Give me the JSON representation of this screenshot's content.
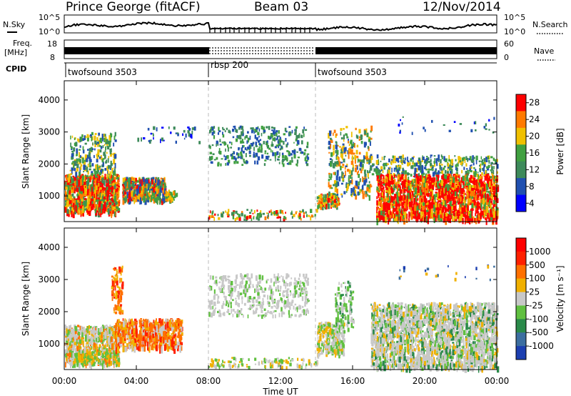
{
  "header": {
    "station": "Prince George (fitACF)",
    "beam": "Beam 03",
    "date": "12/Nov/2014"
  },
  "top_panels": {
    "nsky_label": "N.Sky",
    "nsky_ticks": [
      "10^5",
      "10^0"
    ],
    "nsearch_label": "N.Search",
    "nsearch_ticks": [
      "10^5",
      "10^0"
    ],
    "freq_label_line1": "Freq.",
    "freq_label_line2": "[MHz]",
    "freq_ticks": [
      "18",
      "8"
    ],
    "nave_label": "Nave",
    "nave_ticks": [
      "60",
      "0"
    ],
    "cpid_label": "CPID",
    "cpid_segments": [
      {
        "name": "twofsound 3503",
        "start_hour": 0,
        "end_hour": 8
      },
      {
        "name": "rbsp 200",
        "start_hour": 8,
        "end_hour": 14
      },
      {
        "name": "twofsound 3503",
        "start_hour": 14,
        "end_hour": 24
      }
    ]
  },
  "chart_data": [
    {
      "type": "heatmap",
      "name": "power",
      "ylabel": "Slant Range [km]",
      "ylim": [
        200,
        4600
      ],
      "yticks": [
        "1000",
        "2000",
        "3000",
        "4000"
      ],
      "colorbar_label": "Power [dB]",
      "colorbar_ticks": [
        "28",
        "24",
        "20",
        "16",
        "12",
        "8",
        "4"
      ],
      "colors": [
        "#0000ff",
        "#2050b0",
        "#3d8a5a",
        "#40a040",
        "#f0c000",
        "#ff7a00",
        "#ff0000"
      ]
    },
    {
      "type": "heatmap",
      "name": "velocity",
      "ylabel": "Slant Range [km]",
      "ylim": [
        200,
        4600
      ],
      "yticks": [
        "1000",
        "2000",
        "3000",
        "4000"
      ],
      "colorbar_label": "Velocity [m s⁻¹]",
      "colorbar_ticks": [
        "1000",
        "500",
        "100",
        "25",
        "-25",
        "-100",
        "-500",
        "-1000"
      ],
      "colors": [
        "#1c3fb0",
        "#3c6ea0",
        "#2a8a4a",
        "#60c040",
        "#c8c8c8",
        "#f0b000",
        "#ff7000",
        "#ff2000",
        "#ff0000"
      ]
    }
  ],
  "xaxis": {
    "label": "Time UT",
    "ticks": [
      "00:00",
      "04:00",
      "08:00",
      "12:00",
      "16:00",
      "20:00",
      "00:00"
    ],
    "range_hours": [
      0,
      24
    ]
  }
}
